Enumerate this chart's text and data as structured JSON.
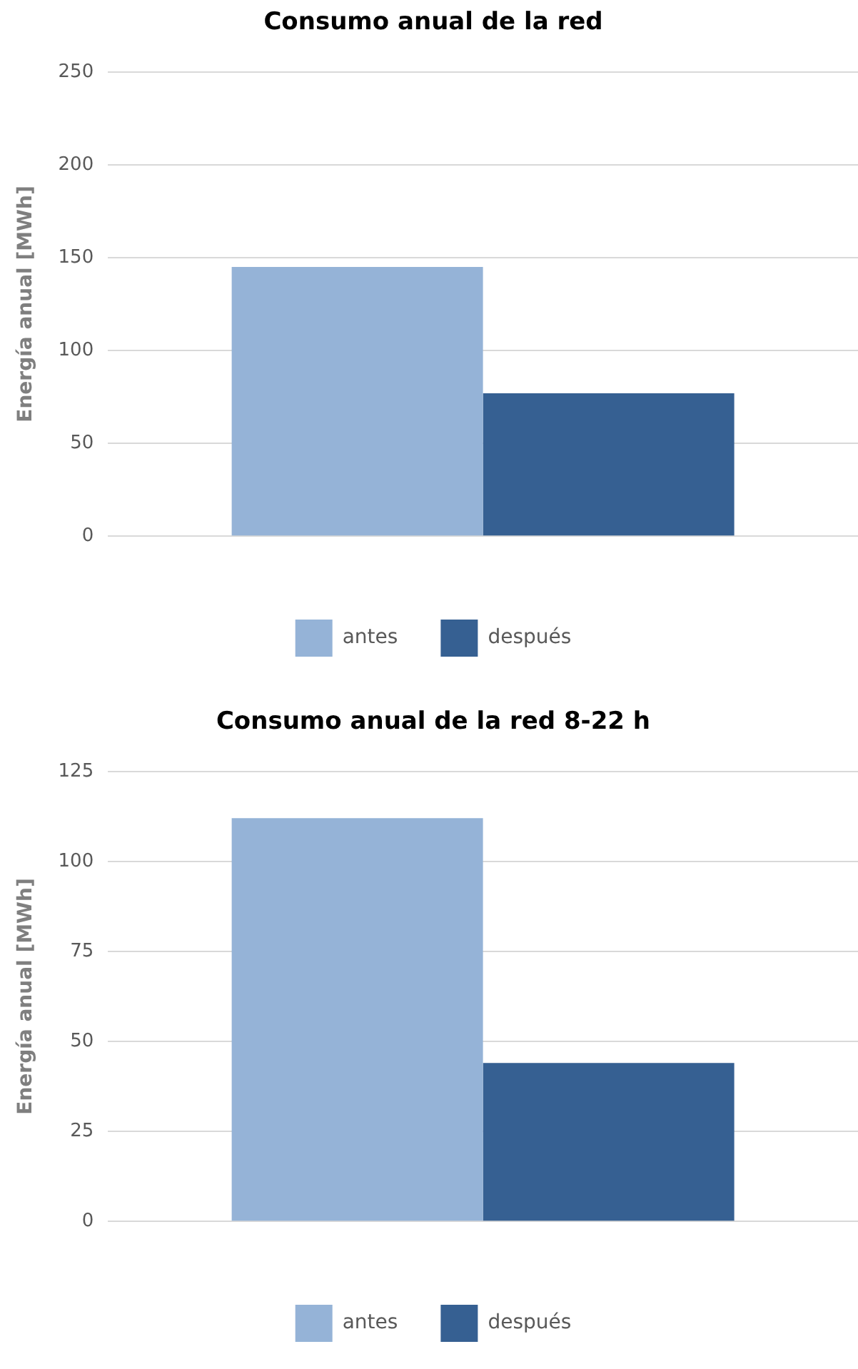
{
  "chart_data": [
    {
      "type": "bar",
      "title": "Consumo anual de la red",
      "ylabel": "Energía anual [MWh]",
      "categories": [
        null
      ],
      "series": [
        {
          "name": "antes",
          "color": "#95b3d7",
          "values": [
            145
          ]
        },
        {
          "name": "después",
          "color": "#366092",
          "values": [
            77
          ]
        }
      ],
      "ylim": [
        0,
        250
      ],
      "yticks": [
        0,
        50,
        100,
        150,
        200,
        250
      ],
      "grid": "y",
      "legend": "bottom"
    },
    {
      "type": "bar",
      "title": "Consumo anual de la red 8-22 h",
      "ylabel": "Energía anual [MWh]",
      "categories": [
        null
      ],
      "series": [
        {
          "name": "antes",
          "color": "#95b3d7",
          "values": [
            112
          ]
        },
        {
          "name": "después",
          "color": "#366092",
          "values": [
            44
          ]
        }
      ],
      "ylim": [
        0,
        125
      ],
      "yticks": [
        0,
        25,
        50,
        75,
        100,
        125
      ],
      "grid": "y",
      "legend": "bottom"
    }
  ]
}
